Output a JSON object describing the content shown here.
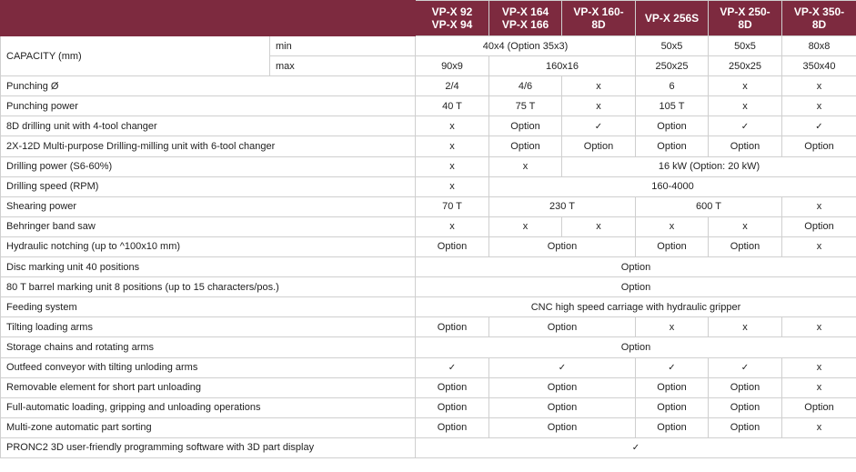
{
  "header": {
    "models": [
      [
        "VP-X 92",
        "VP-X 94"
      ],
      [
        "VP-X 164",
        "VP-X 166"
      ],
      [
        "VP-X 160-",
        "8D"
      ],
      [
        "VP-X 256S"
      ],
      [
        "VP-X 250-",
        "8D"
      ],
      [
        "VP-X 350-",
        "8D"
      ]
    ]
  },
  "rows": [
    {
      "cells": [
        {
          "t": "CAPACITY (mm)",
          "rs": 2
        },
        {
          "t": "min",
          "lbl": 1
        },
        {
          "t": "40x4 (Option 35x3)",
          "cs": 3
        },
        {
          "t": "50x5"
        },
        {
          "t": "50x5"
        },
        {
          "t": "80x8"
        }
      ]
    },
    {
      "cells": [
        {
          "t": "max",
          "lbl": 1
        },
        {
          "t": "90x9"
        },
        {
          "t": "160x16",
          "cs": 2
        },
        {
          "t": "250x25"
        },
        {
          "t": "250x25"
        },
        {
          "t": "350x40"
        }
      ]
    },
    {
      "cells": [
        {
          "t": "Punching Ø",
          "cs": 2,
          "lbl": 1
        },
        {
          "t": "2/4"
        },
        {
          "t": "4/6"
        },
        {
          "t": "x"
        },
        {
          "t": "6"
        },
        {
          "t": "x"
        },
        {
          "t": "x"
        }
      ]
    },
    {
      "cells": [
        {
          "t": "Punching power",
          "cs": 2,
          "lbl": 1
        },
        {
          "t": "40 T"
        },
        {
          "t": "75 T"
        },
        {
          "t": "x"
        },
        {
          "t": "105 T"
        },
        {
          "t": "x"
        },
        {
          "t": "x"
        }
      ]
    },
    {
      "cells": [
        {
          "t": "8D drilling unit with 4-tool changer",
          "cs": 2,
          "lbl": 1
        },
        {
          "t": "x"
        },
        {
          "t": "Option"
        },
        {
          "t": "✓"
        },
        {
          "t": "Option"
        },
        {
          "t": "✓"
        },
        {
          "t": "✓"
        }
      ]
    },
    {
      "cells": [
        {
          "t": "2X-12D Multi-purpose Drilling-milling unit with 6-tool changer",
          "cs": 2,
          "lbl": 1
        },
        {
          "t": "x"
        },
        {
          "t": "Option"
        },
        {
          "t": "Option"
        },
        {
          "t": "Option"
        },
        {
          "t": "Option"
        },
        {
          "t": "Option"
        }
      ]
    },
    {
      "cells": [
        {
          "t": "Drilling power (S6-60%)",
          "cs": 2,
          "lbl": 1
        },
        {
          "t": "x"
        },
        {
          "t": "x"
        },
        {
          "t": "16 kW (Option: 20 kW)",
          "cs": 4
        }
      ]
    },
    {
      "cells": [
        {
          "t": "Drilling speed (RPM)",
          "cs": 2,
          "lbl": 1
        },
        {
          "t": "x"
        },
        {
          "t": "160-4000",
          "cs": 5
        }
      ]
    },
    {
      "cells": [
        {
          "t": "Shearing power",
          "cs": 2,
          "lbl": 1
        },
        {
          "t": "70 T"
        },
        {
          "t": "230 T",
          "cs": 2
        },
        {
          "t": "600 T",
          "cs": 2
        },
        {
          "t": "x"
        }
      ]
    },
    {
      "cells": [
        {
          "t": "Behringer band saw",
          "cs": 2,
          "lbl": 1
        },
        {
          "t": "x"
        },
        {
          "t": "x"
        },
        {
          "t": "x"
        },
        {
          "t": "x"
        },
        {
          "t": "x"
        },
        {
          "t": "Option"
        }
      ]
    },
    {
      "cells": [
        {
          "t": "Hydraulic notching (up to ^100x10 mm)",
          "cs": 2,
          "lbl": 1
        },
        {
          "t": "Option"
        },
        {
          "t": "Option",
          "cs": 2
        },
        {
          "t": "Option"
        },
        {
          "t": "Option"
        },
        {
          "t": "x"
        }
      ]
    },
    {
      "cells": [
        {
          "t": "Disc marking unit 40 positions",
          "cs": 2,
          "lbl": 1
        },
        {
          "t": "Option",
          "cs": 6
        }
      ]
    },
    {
      "cells": [
        {
          "t": "80 T barrel marking unit 8 positions (up to 15 characters/pos.)",
          "cs": 2,
          "lbl": 1
        },
        {
          "t": "Option",
          "cs": 6
        }
      ]
    },
    {
      "cells": [
        {
          "t": "Feeding system",
          "cs": 2,
          "lbl": 1
        },
        {
          "t": "CNC high speed carriage with hydraulic gripper",
          "cs": 6
        }
      ]
    },
    {
      "cells": [
        {
          "t": "Tilting loading arms",
          "cs": 2,
          "lbl": 1
        },
        {
          "t": "Option"
        },
        {
          "t": "Option",
          "cs": 2
        },
        {
          "t": "x"
        },
        {
          "t": "x"
        },
        {
          "t": "x"
        }
      ]
    },
    {
      "cells": [
        {
          "t": "Storage chains and rotating arms",
          "cs": 2,
          "lbl": 1
        },
        {
          "t": "Option",
          "cs": 6
        }
      ]
    },
    {
      "cells": [
        {
          "t": "Outfeed conveyor with tilting unloding arms",
          "cs": 2,
          "lbl": 1
        },
        {
          "t": "✓"
        },
        {
          "t": "✓",
          "cs": 2
        },
        {
          "t": "✓"
        },
        {
          "t": "✓"
        },
        {
          "t": "x"
        }
      ]
    },
    {
      "cells": [
        {
          "t": "Removable element for short part unloading",
          "cs": 2,
          "lbl": 1
        },
        {
          "t": "Option"
        },
        {
          "t": "Option",
          "cs": 2
        },
        {
          "t": "Option"
        },
        {
          "t": "Option"
        },
        {
          "t": "x"
        }
      ]
    },
    {
      "cells": [
        {
          "t": "Full-automatic loading, gripping and unloading operations",
          "cs": 2,
          "lbl": 1
        },
        {
          "t": "Option"
        },
        {
          "t": "Option",
          "cs": 2
        },
        {
          "t": "Option"
        },
        {
          "t": "Option"
        },
        {
          "t": "Option"
        }
      ]
    },
    {
      "cells": [
        {
          "t": "Multi-zone automatic part sorting",
          "cs": 2,
          "lbl": 1
        },
        {
          "t": "Option"
        },
        {
          "t": "Option",
          "cs": 2
        },
        {
          "t": "Option"
        },
        {
          "t": "Option"
        },
        {
          "t": "x"
        }
      ]
    },
    {
      "cells": [
        {
          "t": "PRONC2 3D user-friendly programming software with 3D part display",
          "cs": 2,
          "lbl": 1
        },
        {
          "t": "✓",
          "cs": 6
        }
      ]
    }
  ]
}
